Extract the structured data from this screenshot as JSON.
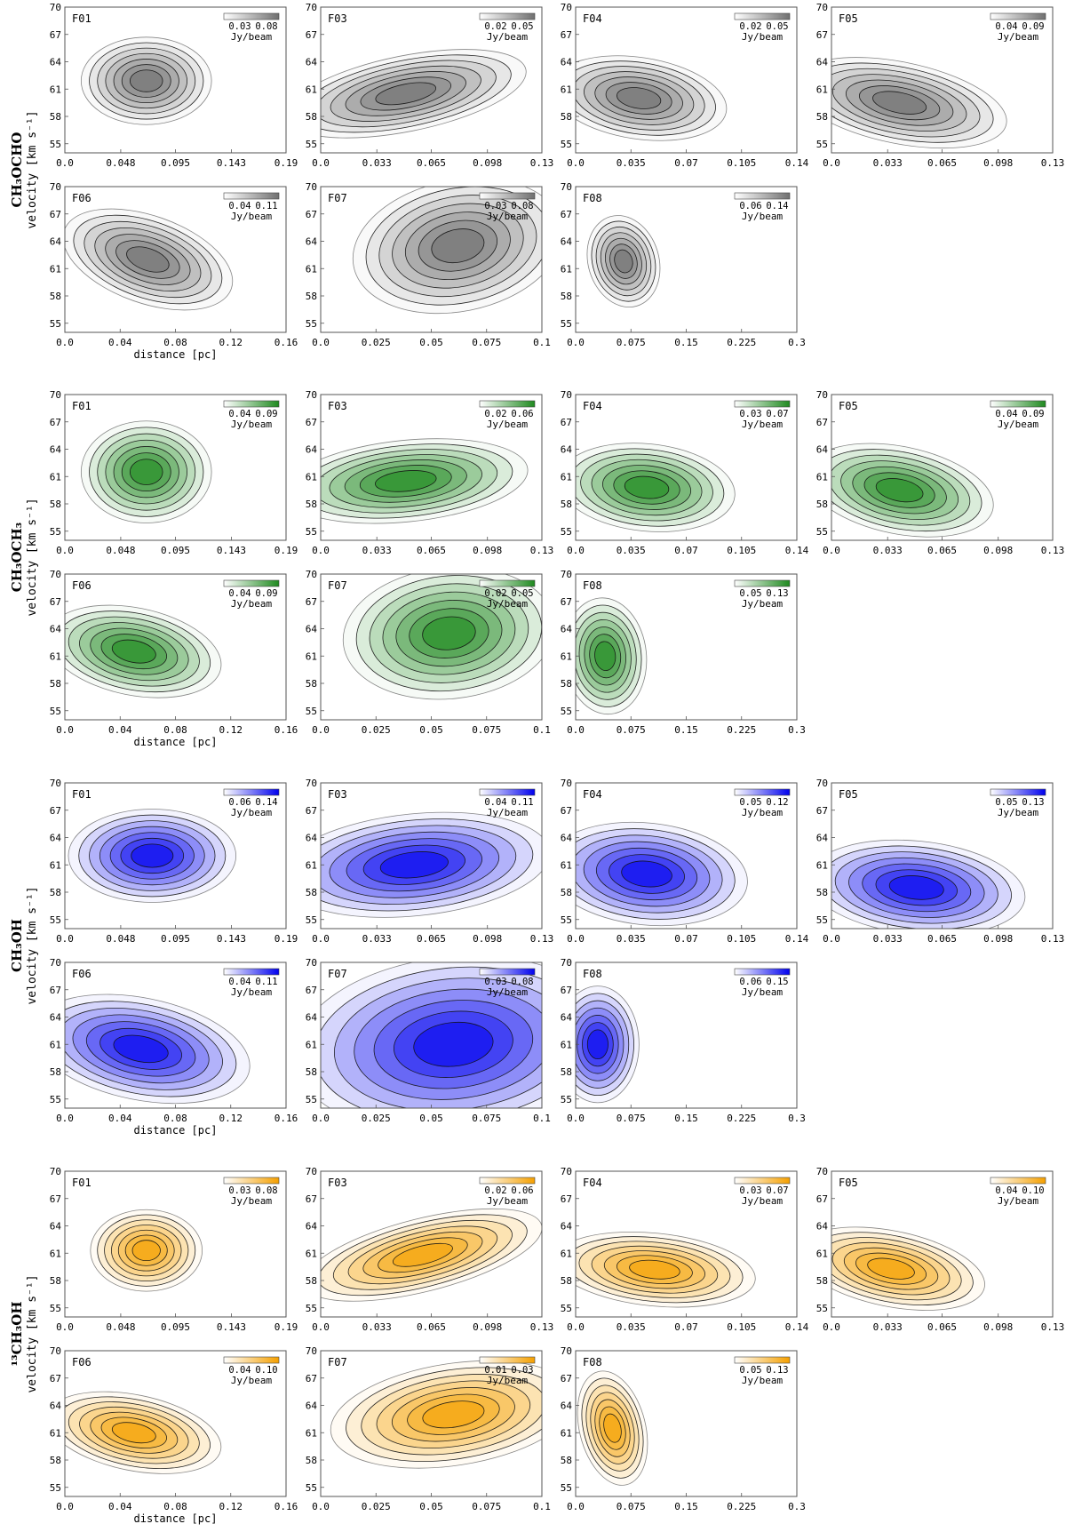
{
  "figure": {
    "common": {
      "ylabel": "velocity [km s⁻¹]",
      "xlabel": "distance [pc]",
      "unit": "Jy/beam",
      "y_ticks": [
        "55",
        "58",
        "61",
        "64",
        "67",
        "70"
      ]
    },
    "rows": [
      {
        "molecule": "CH₃OCHO",
        "color": "#707070",
        "panels": [
          {
            "label": "F01",
            "cbar_ticks": [
              "0.03",
              "0.08"
            ],
            "x_ticks": [
              "0.0",
              "0.048",
              "0.095",
              "0.143",
              "0.19"
            ],
            "peak": {
              "x": 0.07,
              "v": 61.9
            },
            "spread": {
              "x": 0.035,
              "v": 3.0
            },
            "tilt": 0.0
          },
          {
            "label": "F03",
            "cbar_ticks": [
              "0.02",
              "0.05"
            ],
            "x_ticks": [
              "0.0",
              "0.033",
              "0.065",
              "0.098",
              "0.13"
            ],
            "peak": {
              "x": 0.05,
              "v": 60.5
            },
            "spread": {
              "x": 0.045,
              "v": 2.6
            },
            "tilt": 0.2
          },
          {
            "label": "F04",
            "cbar_ticks": [
              "0.02",
              "0.05"
            ],
            "x_ticks": [
              "0.0",
              "0.035",
              "0.07",
              "0.105",
              "0.14"
            ],
            "peak": {
              "x": 0.04,
              "v": 60.0
            },
            "spread": {
              "x": 0.035,
              "v": 2.8
            },
            "tilt": -0.15
          },
          {
            "label": "F05",
            "cbar_ticks": [
              "0.04",
              "0.09"
            ],
            "x_ticks": [
              "0.0",
              "0.033",
              "0.065",
              "0.098",
              "0.13"
            ],
            "peak": {
              "x": 0.04,
              "v": 59.5
            },
            "spread": {
              "x": 0.04,
              "v": 2.8
            },
            "tilt": -0.2
          },
          {
            "label": "F06",
            "cbar_ticks": [
              "0.04",
              "0.11"
            ],
            "x_ticks": [
              "0.0",
              "0.04",
              "0.08",
              "0.12",
              "0.16"
            ],
            "peak": {
              "x": 0.06,
              "v": 62.0
            },
            "spread": {
              "x": 0.04,
              "v": 3.0
            },
            "tilt": -0.35
          },
          {
            "label": "F07",
            "cbar_ticks": [
              "0.03",
              "0.08"
            ],
            "x_ticks": [
              "0.0",
              "0.025",
              "0.05",
              "0.075",
              "0.1"
            ],
            "peak": {
              "x": 0.062,
              "v": 63.5
            },
            "spread": {
              "x": 0.03,
              "v": 4.5
            },
            "tilt": 0.2
          },
          {
            "label": "F08",
            "cbar_ticks": [
              "0.06",
              "0.14"
            ],
            "x_ticks": [
              "0.0",
              "0.075",
              "0.15",
              "0.225",
              "0.3"
            ],
            "peak": {
              "x": 0.065,
              "v": 61.8
            },
            "spread": {
              "x": 0.03,
              "v": 3.2
            },
            "tilt": 0.3
          }
        ]
      },
      {
        "molecule": "CH₃OCH₃",
        "color": "#1f8a1f",
        "panels": [
          {
            "label": "F01",
            "cbar_ticks": [
              "0.04",
              "0.09"
            ],
            "x_ticks": [
              "0.0",
              "0.048",
              "0.095",
              "0.143",
              "0.19"
            ],
            "peak": {
              "x": 0.07,
              "v": 61.5
            },
            "spread": {
              "x": 0.035,
              "v": 3.5
            },
            "tilt": 0.0
          },
          {
            "label": "F03",
            "cbar_ticks": [
              "0.02",
              "0.06"
            ],
            "x_ticks": [
              "0.0",
              "0.033",
              "0.065",
              "0.098",
              "0.13"
            ],
            "peak": {
              "x": 0.05,
              "v": 60.5
            },
            "spread": {
              "x": 0.045,
              "v": 2.8
            },
            "tilt": 0.1
          },
          {
            "label": "F04",
            "cbar_ticks": [
              "0.03",
              "0.07"
            ],
            "x_ticks": [
              "0.0",
              "0.035",
              "0.07",
              "0.105",
              "0.14"
            ],
            "peak": {
              "x": 0.045,
              "v": 59.8
            },
            "spread": {
              "x": 0.035,
              "v": 3.0
            },
            "tilt": -0.1
          },
          {
            "label": "F05",
            "cbar_ticks": [
              "0.04",
              "0.09"
            ],
            "x_ticks": [
              "0.0",
              "0.033",
              "0.065",
              "0.098",
              "0.13"
            ],
            "peak": {
              "x": 0.04,
              "v": 59.5
            },
            "spread": {
              "x": 0.035,
              "v": 3.0
            },
            "tilt": -0.2
          },
          {
            "label": "F06",
            "cbar_ticks": [
              "0.04",
              "0.09"
            ],
            "x_ticks": [
              "0.0",
              "0.04",
              "0.08",
              "0.12",
              "0.16"
            ],
            "peak": {
              "x": 0.05,
              "v": 61.5
            },
            "spread": {
              "x": 0.04,
              "v": 3.0
            },
            "tilt": -0.2
          },
          {
            "label": "F07",
            "cbar_ticks": [
              "0.02",
              "0.05"
            ],
            "x_ticks": [
              "0.0",
              "0.025",
              "0.05",
              "0.075",
              "0.1"
            ],
            "peak": {
              "x": 0.058,
              "v": 63.5
            },
            "spread": {
              "x": 0.03,
              "v": 4.5
            },
            "tilt": 0.1
          },
          {
            "label": "F08",
            "cbar_ticks": [
              "0.05",
              "0.13"
            ],
            "x_ticks": [
              "0.0",
              "0.075",
              "0.15",
              "0.225",
              "0.3"
            ],
            "peak": {
              "x": 0.04,
              "v": 61.0
            },
            "spread": {
              "x": 0.035,
              "v": 4.0
            },
            "tilt": 0.1
          }
        ]
      },
      {
        "molecule": "CH₃OH",
        "color": "#0000ee",
        "panels": [
          {
            "label": "F01",
            "cbar_ticks": [
              "0.06",
              "0.14"
            ],
            "x_ticks": [
              "0.0",
              "0.048",
              "0.095",
              "0.143",
              "0.19"
            ],
            "peak": {
              "x": 0.075,
              "v": 62.0
            },
            "spread": {
              "x": 0.045,
              "v": 3.2
            },
            "tilt": 0.0
          },
          {
            "label": "F03",
            "cbar_ticks": [
              "0.04",
              "0.11"
            ],
            "x_ticks": [
              "0.0",
              "0.033",
              "0.065",
              "0.098",
              "0.13"
            ],
            "peak": {
              "x": 0.055,
              "v": 61.0
            },
            "spread": {
              "x": 0.05,
              "v": 3.5
            },
            "tilt": 0.1
          },
          {
            "label": "F04",
            "cbar_ticks": [
              "0.05",
              "0.12"
            ],
            "x_ticks": [
              "0.0",
              "0.035",
              "0.07",
              "0.105",
              "0.14"
            ],
            "peak": {
              "x": 0.045,
              "v": 60.0
            },
            "spread": {
              "x": 0.04,
              "v": 3.5
            },
            "tilt": -0.1
          },
          {
            "label": "F05",
            "cbar_ticks": [
              "0.05",
              "0.13"
            ],
            "x_ticks": [
              "0.0",
              "0.033",
              "0.065",
              "0.098",
              "0.13"
            ],
            "peak": {
              "x": 0.05,
              "v": 58.5
            },
            "spread": {
              "x": 0.04,
              "v": 3.2
            },
            "tilt": -0.1
          },
          {
            "label": "F06",
            "cbar_ticks": [
              "0.04",
              "0.11"
            ],
            "x_ticks": [
              "0.0",
              "0.04",
              "0.08",
              "0.12",
              "0.16"
            ],
            "peak": {
              "x": 0.055,
              "v": 60.5
            },
            "spread": {
              "x": 0.05,
              "v": 3.5
            },
            "tilt": -0.2
          },
          {
            "label": "F07",
            "cbar_ticks": [
              "0.03",
              "0.08"
            ],
            "x_ticks": [
              "0.0",
              "0.025",
              "0.05",
              "0.075",
              "0.1"
            ],
            "peak": {
              "x": 0.06,
              "v": 61.0
            },
            "spread": {
              "x": 0.045,
              "v": 6.0
            },
            "tilt": 0.1
          },
          {
            "label": "F08",
            "cbar_ticks": [
              "0.06",
              "0.15"
            ],
            "x_ticks": [
              "0.0",
              "0.075",
              "0.15",
              "0.225",
              "0.3"
            ],
            "peak": {
              "x": 0.03,
              "v": 61.0
            },
            "spread": {
              "x": 0.035,
              "v": 4.0
            },
            "tilt": 0.0
          }
        ]
      },
      {
        "molecule": "¹³CH₃OH",
        "color": "#f5a000",
        "panels": [
          {
            "label": "F01",
            "cbar_ticks": [
              "0.03",
              "0.08"
            ],
            "x_ticks": [
              "0.0",
              "0.048",
              "0.095",
              "0.143",
              "0.19"
            ],
            "peak": {
              "x": 0.07,
              "v": 61.3
            },
            "spread": {
              "x": 0.03,
              "v": 2.8
            },
            "tilt": 0.0
          },
          {
            "label": "F03",
            "cbar_ticks": [
              "0.02",
              "0.06"
            ],
            "x_ticks": [
              "0.0",
              "0.033",
              "0.065",
              "0.098",
              "0.13"
            ],
            "peak": {
              "x": 0.06,
              "v": 60.8
            },
            "spread": {
              "x": 0.045,
              "v": 2.5
            },
            "tilt": 0.25
          },
          {
            "label": "F04",
            "cbar_ticks": [
              "0.03",
              "0.07"
            ],
            "x_ticks": [
              "0.0",
              "0.035",
              "0.07",
              "0.105",
              "0.14"
            ],
            "peak": {
              "x": 0.05,
              "v": 59.2
            },
            "spread": {
              "x": 0.04,
              "v": 2.5
            },
            "tilt": -0.1
          },
          {
            "label": "F05",
            "cbar_ticks": [
              "0.04",
              "0.10"
            ],
            "x_ticks": [
              "0.0",
              "0.033",
              "0.065",
              "0.098",
              "0.13"
            ],
            "peak": {
              "x": 0.035,
              "v": 59.3
            },
            "spread": {
              "x": 0.035,
              "v": 2.6
            },
            "tilt": -0.2
          },
          {
            "label": "F06",
            "cbar_ticks": [
              "0.04",
              "0.10"
            ],
            "x_ticks": [
              "0.0",
              "0.04",
              "0.08",
              "0.12",
              "0.16"
            ],
            "peak": {
              "x": 0.05,
              "v": 61.0
            },
            "spread": {
              "x": 0.04,
              "v": 2.6
            },
            "tilt": -0.2
          },
          {
            "label": "F07",
            "cbar_ticks": [
              "0.01",
              "0.03"
            ],
            "x_ticks": [
              "0.0",
              "0.025",
              "0.05",
              "0.075",
              "0.1"
            ],
            "peak": {
              "x": 0.06,
              "v": 63.0
            },
            "spread": {
              "x": 0.035,
              "v": 3.5
            },
            "tilt": 0.15
          },
          {
            "label": "F08",
            "cbar_ticks": [
              "0.05",
              "0.13"
            ],
            "x_ticks": [
              "0.0",
              "0.075",
              "0.15",
              "0.225",
              "0.3"
            ],
            "peak": {
              "x": 0.05,
              "v": 61.5
            },
            "spread": {
              "x": 0.028,
              "v": 4.0
            },
            "tilt": 0.25
          }
        ]
      }
    ]
  },
  "chart_data": {
    "type": "heatmap",
    "ylabel": "velocity [km s⁻¹]",
    "xlabel": "distance [pc]",
    "ylim": [
      54,
      70
    ],
    "colorbar_unit": "Jy/beam",
    "grid": false,
    "description_of_values": "position-velocity intensity maps with contours; per-panel emission peak location (distance pc, velocity km/s) estimated from plots",
    "rows": [
      "CH₃OCHO",
      "CH₃OCH₃",
      "CH₃OH",
      "¹³CH₃OH"
    ],
    "panels": [
      "F01",
      "F03",
      "F04",
      "F05",
      "F06",
      "F07",
      "F08"
    ],
    "xlims": {
      "F01": [
        0,
        0.19
      ],
      "F03": [
        0,
        0.13
      ],
      "F04": [
        0,
        0.14
      ],
      "F05": [
        0,
        0.13
      ],
      "F06": [
        0,
        0.16
      ],
      "F07": [
        0,
        0.1
      ],
      "F08": [
        0,
        0.3
      ]
    }
  }
}
